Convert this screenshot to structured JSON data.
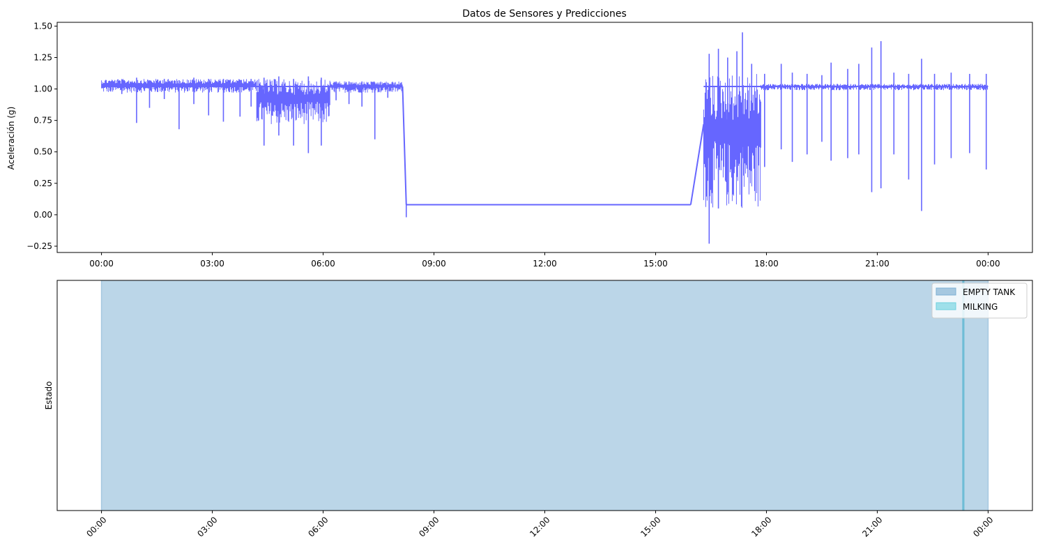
{
  "chart_data": [
    {
      "type": "line",
      "title": "Datos de Sensores y Predicciones",
      "xlabel": "",
      "ylabel": "Aceleración (g)",
      "x_tick_labels": [
        "00:00",
        "03:00",
        "06:00",
        "09:00",
        "12:00",
        "15:00",
        "18:00",
        "21:00",
        "00:00"
      ],
      "x_ticks_hours": [
        0,
        3,
        6,
        9,
        12,
        15,
        18,
        21,
        24
      ],
      "xlim_hours": [
        -1.2,
        25.2
      ],
      "y_ticks": [
        -0.25,
        0.0,
        0.25,
        0.5,
        0.75,
        1.0,
        1.25,
        1.5
      ],
      "y_tick_labels": [
        "−0.25",
        "0.00",
        "0.25",
        "0.50",
        "0.75",
        "1.00",
        "1.25",
        "1.50"
      ],
      "ylim": [
        -0.3,
        1.53
      ],
      "grid": false,
      "series": [
        {
          "color": "#6666ff",
          "baseline_segments": [
            {
              "x": [
                0.0,
                8.15
              ],
              "y": [
                1.02,
                1.02
              ]
            },
            {
              "x": [
                8.15,
                8.25
              ],
              "y": [
                1.02,
                0.08
              ]
            },
            {
              "x": [
                8.25,
                15.95
              ],
              "y": [
                0.08,
                0.08
              ]
            },
            {
              "x": [
                15.95,
                16.3
              ],
              "y": [
                0.08,
                0.72
              ]
            },
            {
              "x": [
                16.3,
                24.0
              ],
              "y": [
                1.02,
                1.02
              ]
            }
          ],
          "noise_bands": [
            {
              "x": [
                0.0,
                4.2
              ],
              "y": [
                0.97,
                1.08
              ]
            },
            {
              "x": [
                4.2,
                6.2
              ],
              "y": [
                0.72,
                1.08
              ]
            },
            {
              "x": [
                6.2,
                8.15
              ],
              "y": [
                0.97,
                1.06
              ]
            },
            {
              "x": [
                16.3,
                17.85
              ],
              "y": [
                0.05,
                1.12
              ]
            },
            {
              "x": [
                17.85,
                24.0
              ],
              "y": [
                0.99,
                1.04
              ]
            }
          ],
          "spikes": [
            {
              "x": 0.25,
              "min": 0.98,
              "max": 1.06
            },
            {
              "x": 0.55,
              "min": 0.96,
              "max": 1.07
            },
            {
              "x": 0.95,
              "min": 0.73,
              "max": 1.09
            },
            {
              "x": 1.3,
              "min": 0.85,
              "max": 1.07
            },
            {
              "x": 1.7,
              "min": 0.92,
              "max": 1.08
            },
            {
              "x": 2.1,
              "min": 0.68,
              "max": 1.07
            },
            {
              "x": 2.5,
              "min": 0.88,
              "max": 1.09
            },
            {
              "x": 2.9,
              "min": 0.79,
              "max": 1.08
            },
            {
              "x": 3.3,
              "min": 0.74,
              "max": 1.08
            },
            {
              "x": 3.75,
              "min": 0.78,
              "max": 1.07
            },
            {
              "x": 4.05,
              "min": 0.86,
              "max": 1.08
            },
            {
              "x": 4.4,
              "min": 0.55,
              "max": 1.09
            },
            {
              "x": 4.8,
              "min": 0.63,
              "max": 1.1
            },
            {
              "x": 5.2,
              "min": 0.55,
              "max": 1.08
            },
            {
              "x": 5.6,
              "min": 0.49,
              "max": 1.1
            },
            {
              "x": 5.95,
              "min": 0.55,
              "max": 1.09
            },
            {
              "x": 6.35,
              "min": 0.91,
              "max": 1.06
            },
            {
              "x": 6.7,
              "min": 0.88,
              "max": 1.06
            },
            {
              "x": 7.05,
              "min": 0.86,
              "max": 1.06
            },
            {
              "x": 7.4,
              "min": 0.6,
              "max": 1.05
            },
            {
              "x": 7.75,
              "min": 0.93,
              "max": 1.05
            },
            {
              "x": 8.25,
              "min": -0.02,
              "max": 0.08
            },
            {
              "x": 16.45,
              "min": -0.23,
              "max": 1.28
            },
            {
              "x": 16.7,
              "min": 0.05,
              "max": 1.32
            },
            {
              "x": 16.95,
              "min": 0.18,
              "max": 1.25
            },
            {
              "x": 17.2,
              "min": 0.3,
              "max": 1.3
            },
            {
              "x": 17.35,
              "min": 0.45,
              "max": 1.45
            },
            {
              "x": 17.6,
              "min": 0.48,
              "max": 1.2
            },
            {
              "x": 17.95,
              "min": 0.38,
              "max": 1.12
            },
            {
              "x": 18.4,
              "min": 0.52,
              "max": 1.2
            },
            {
              "x": 18.7,
              "min": 0.42,
              "max": 1.13
            },
            {
              "x": 19.1,
              "min": 0.48,
              "max": 1.12
            },
            {
              "x": 19.5,
              "min": 0.58,
              "max": 1.11
            },
            {
              "x": 19.75,
              "min": 0.43,
              "max": 1.21
            },
            {
              "x": 20.2,
              "min": 0.45,
              "max": 1.16
            },
            {
              "x": 20.5,
              "min": 0.48,
              "max": 1.2
            },
            {
              "x": 20.85,
              "min": 0.18,
              "max": 1.33
            },
            {
              "x": 21.1,
              "min": 0.21,
              "max": 1.38
            },
            {
              "x": 21.45,
              "min": 0.48,
              "max": 1.13
            },
            {
              "x": 21.85,
              "min": 0.28,
              "max": 1.12
            },
            {
              "x": 22.2,
              "min": 0.03,
              "max": 1.24
            },
            {
              "x": 22.55,
              "min": 0.4,
              "max": 1.12
            },
            {
              "x": 23.0,
              "min": 0.45,
              "max": 1.13
            },
            {
              "x": 23.5,
              "min": 0.49,
              "max": 1.12
            },
            {
              "x": 23.95,
              "min": 0.36,
              "max": 1.12
            }
          ]
        }
      ]
    },
    {
      "type": "area",
      "title": "",
      "xlabel": "",
      "ylabel": "Estado",
      "x_tick_labels": [
        "00:00",
        "03:00",
        "06:00",
        "09:00",
        "12:00",
        "15:00",
        "18:00",
        "21:00",
        "00:00"
      ],
      "x_ticks_hours": [
        0,
        3,
        6,
        9,
        12,
        15,
        18,
        21,
        24
      ],
      "xlim_hours": [
        -1.2,
        25.2
      ],
      "x_tick_rotation": 45,
      "grid": false,
      "legend": "top-right",
      "series": [
        {
          "name": "EMPTY TANK",
          "color": "#a6c8e0",
          "spans_hours": [
            [
              0.0,
              24.0
            ]
          ]
        },
        {
          "name": "MILKING",
          "color": "#9fe0ea",
          "spans_hours": [
            [
              23.3,
              23.36
            ]
          ]
        }
      ]
    }
  ]
}
